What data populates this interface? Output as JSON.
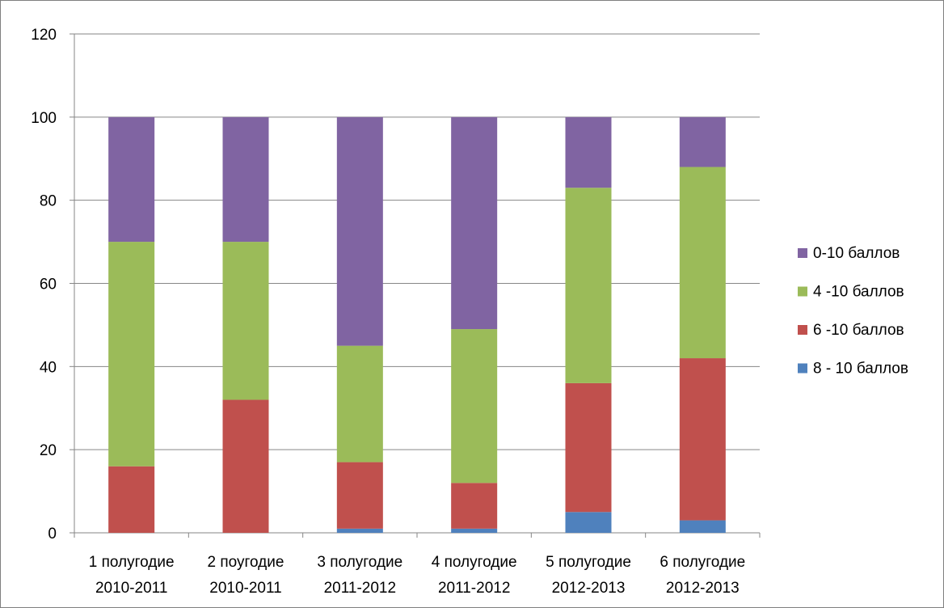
{
  "chart_data": {
    "type": "bar",
    "stacked": true,
    "title": "",
    "xlabel": "",
    "ylabel": "",
    "ylim": [
      0,
      120
    ],
    "yticks": [
      0,
      20,
      40,
      60,
      80,
      100,
      120
    ],
    "grid": true,
    "legend_position": "right",
    "categories": [
      [
        "1 полугодие",
        "2010-2011"
      ],
      [
        "2 поугодие",
        "2010-2011"
      ],
      [
        "3 полугодие",
        "2011-2012"
      ],
      [
        "4 полугодие",
        "2011-2012"
      ],
      [
        "5 полугодие",
        "2012-2013"
      ],
      [
        "6 полугодие",
        "2012-2013"
      ]
    ],
    "series": [
      {
        "name": "8 - 10 баллов",
        "color": "#4f81bd",
        "values": [
          0,
          0,
          1,
          1,
          5,
          3
        ]
      },
      {
        "name": "6 -10 баллов",
        "color": "#c0504d",
        "values": [
          16,
          32,
          16,
          11,
          31,
          39
        ]
      },
      {
        "name": "4 -10 баллов",
        "color": "#9bbb59",
        "values": [
          54,
          38,
          28,
          37,
          47,
          46
        ]
      },
      {
        "name": "0-10 баллов",
        "color": "#8064a2",
        "values": [
          30,
          30,
          55,
          51,
          17,
          12
        ]
      }
    ],
    "legend_order": [
      "0-10 баллов",
      "4 -10 баллов",
      "6 -10 баллов",
      "8 - 10 баллов"
    ]
  }
}
